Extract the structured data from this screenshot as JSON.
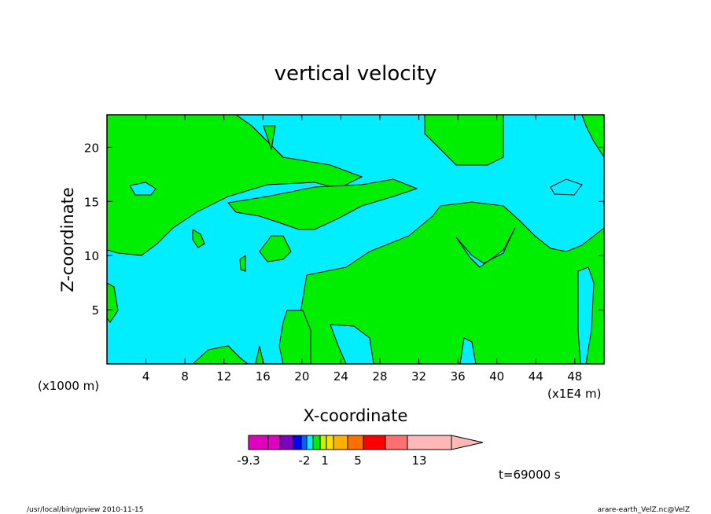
{
  "chart_data": {
    "type": "heatmap",
    "title": "vertical velocity",
    "xlabel": "X-coordinate",
    "ylabel": "Z-coordinate",
    "x_unit_left": "(x1000 m)",
    "x_unit_right": "(x1E4 m)",
    "x_ticks": [
      "4",
      "8",
      "12",
      "16",
      "20",
      "24",
      "28",
      "32",
      "36",
      "40",
      "44",
      "48"
    ],
    "y_ticks": [
      "5",
      "10",
      "15",
      "20"
    ],
    "xlim": [
      0,
      51
    ],
    "ylim": [
      0,
      23
    ],
    "colors": {
      "background_level": "#00eeff",
      "positive_level": "#00ee00",
      "outline": "#000000"
    },
    "colorbar": {
      "colors": [
        "#e000c0",
        "#e000c0",
        "#8000c0",
        "#0000ff",
        "#0060ff",
        "#00eeff",
        "#00ee00",
        "#c8f000",
        "#ffe000",
        "#ffb000",
        "#ff7000",
        "#ff0000",
        "#ff7070",
        "#ffb8b8"
      ],
      "tick_labels": [
        "-9.3",
        "-2",
        "1",
        "5",
        "13"
      ],
      "extend": "max"
    },
    "time_label": "t=69000 s"
  },
  "footer": {
    "left": "/usr/local/bin/gpview  2010-11-15",
    "right": "arare-earth_VelZ.nc@VelZ"
  }
}
